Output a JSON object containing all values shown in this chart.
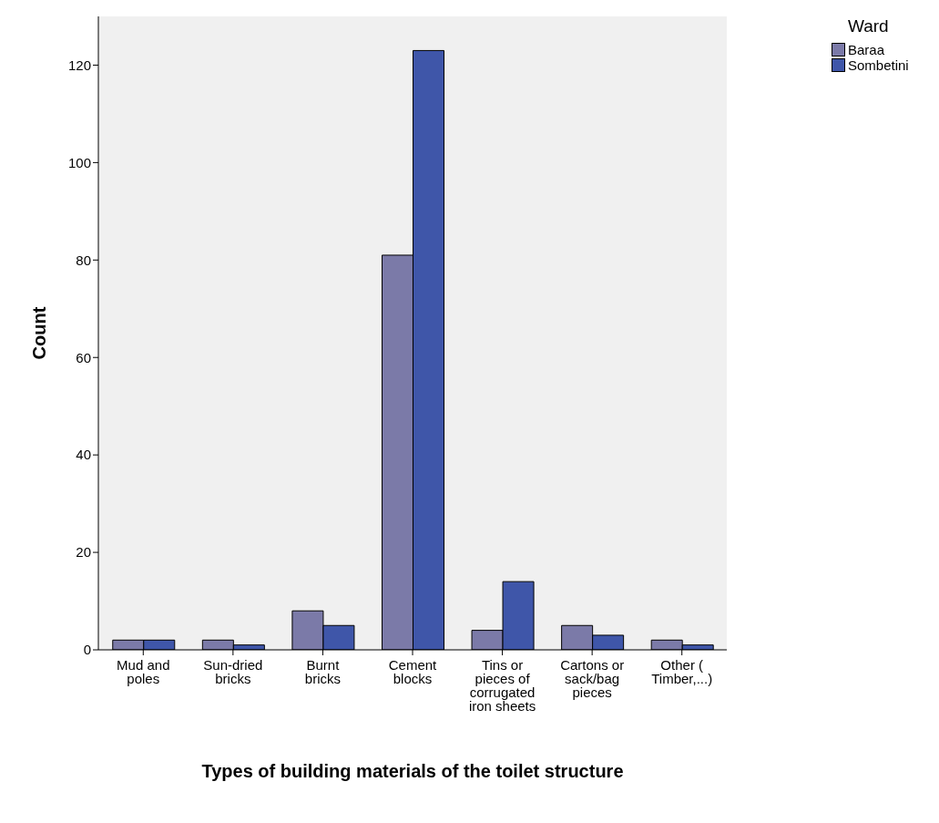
{
  "chart_data": {
    "type": "bar",
    "xlabel": "Types of building materials of the toilet structure",
    "ylabel": "Count",
    "legend_title": "Ward",
    "legend": "top right",
    "categories": [
      "Mud and poles",
      "Sun-dried bricks",
      "Burnt bricks",
      "Cement blocks",
      "Tins or pieces of corrugated iron sheets",
      "Cartons or sack/bag pieces",
      "Other ( Timber,...)"
    ],
    "series": [
      {
        "name": "Baraa",
        "color": "#7b7aa8",
        "values": [
          2,
          2,
          8,
          81,
          4,
          5,
          2
        ]
      },
      {
        "name": "Sombetini",
        "color": "#3f56a9",
        "values": [
          2,
          1,
          5,
          123,
          14,
          3,
          1
        ]
      }
    ],
    "ylim": [
      0,
      130
    ],
    "yticks": [
      0,
      20,
      40,
      60,
      80,
      100,
      120
    ]
  }
}
